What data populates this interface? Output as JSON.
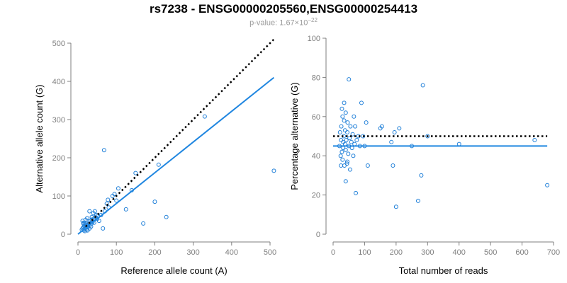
{
  "title": "rs7238 - ENSG00000205560,ENSG00000254413",
  "subtitle": {
    "prefix": "p-value: 1.67×10",
    "exponent": "−22"
  },
  "colors": {
    "points": "#1f7fd8",
    "fit_line": "#1f86e0",
    "reference_line": "#000000",
    "axis": "#7f7f7f"
  },
  "chart_data": [
    {
      "type": "scatter",
      "xlabel": "Reference allele count (A)",
      "ylabel": "Alternative allele count (G)",
      "xlim": [
        0,
        500
      ],
      "ylim": [
        0,
        500
      ],
      "xticks": [
        0,
        100,
        200,
        300,
        400,
        500
      ],
      "yticks": [
        0,
        100,
        200,
        300,
        400,
        500
      ],
      "reference_line": {
        "style": "dotted",
        "x": [
          20,
          510
        ],
        "y": [
          20,
          510
        ]
      },
      "fit_line": {
        "style": "solid",
        "x": [
          0,
          510
        ],
        "y": [
          0,
          410
        ]
      },
      "points": [
        [
          10,
          12
        ],
        [
          12,
          15
        ],
        [
          14,
          18
        ],
        [
          15,
          10
        ],
        [
          16,
          22
        ],
        [
          18,
          14
        ],
        [
          20,
          20
        ],
        [
          22,
          25
        ],
        [
          25,
          18
        ],
        [
          28,
          30
        ],
        [
          30,
          22
        ],
        [
          32,
          35
        ],
        [
          35,
          28
        ],
        [
          38,
          32
        ],
        [
          40,
          40
        ],
        [
          15,
          30
        ],
        [
          18,
          25
        ],
        [
          22,
          12
        ],
        [
          26,
          20
        ],
        [
          30,
          15
        ],
        [
          12,
          35
        ],
        [
          14,
          28
        ],
        [
          20,
          38
        ],
        [
          24,
          42
        ],
        [
          28,
          26
        ],
        [
          34,
          20
        ],
        [
          36,
          38
        ],
        [
          42,
          30
        ],
        [
          45,
          45
        ],
        [
          48,
          50
        ],
        [
          20,
          30
        ],
        [
          25,
          10
        ],
        [
          30,
          60
        ],
        [
          36,
          45
        ],
        [
          40,
          55
        ],
        [
          44,
          60
        ],
        [
          50,
          40
        ],
        [
          52,
          48
        ],
        [
          55,
          35
        ],
        [
          60,
          50
        ],
        [
          65,
          15
        ],
        [
          70,
          60
        ],
        [
          75,
          80
        ],
        [
          78,
          90
        ],
        [
          80,
          70
        ],
        [
          90,
          100
        ],
        [
          95,
          105
        ],
        [
          100,
          88
        ],
        [
          105,
          120
        ],
        [
          68,
          220
        ],
        [
          125,
          65
        ],
        [
          140,
          115
        ],
        [
          150,
          160
        ],
        [
          170,
          28
        ],
        [
          200,
          85
        ],
        [
          210,
          182
        ],
        [
          230,
          45
        ],
        [
          330,
          308
        ],
        [
          510,
          166
        ],
        [
          18,
          8
        ]
      ]
    },
    {
      "type": "scatter",
      "xlabel": "Total number of reads",
      "ylabel": "Percentage alternative (G)",
      "xlim": [
        0,
        700
      ],
      "ylim": [
        0,
        100
      ],
      "xticks": [
        0,
        100,
        200,
        300,
        400,
        500,
        600,
        700
      ],
      "yticks": [
        0,
        20,
        40,
        60,
        80,
        100
      ],
      "reference_line": {
        "style": "dotted",
        "x": [
          0,
          680
        ],
        "y": [
          50,
          50
        ]
      },
      "fit_line": {
        "style": "solid",
        "x": [
          0,
          680
        ],
        "y": [
          45,
          45
        ]
      },
      "points": [
        [
          20,
          45
        ],
        [
          22,
          52
        ],
        [
          24,
          40
        ],
        [
          25,
          48
        ],
        [
          26,
          55
        ],
        [
          28,
          42
        ],
        [
          30,
          60
        ],
        [
          30,
          38
        ],
        [
          32,
          47
        ],
        [
          32,
          44
        ],
        [
          34,
          50
        ],
        [
          35,
          58
        ],
        [
          36,
          35
        ],
        [
          38,
          46
        ],
        [
          38,
          53
        ],
        [
          40,
          43
        ],
        [
          40,
          62
        ],
        [
          42,
          48
        ],
        [
          44,
          36
        ],
        [
          45,
          52
        ],
        [
          46,
          57
        ],
        [
          48,
          41
        ],
        [
          50,
          45
        ],
        [
          50,
          79
        ],
        [
          52,
          49
        ],
        [
          54,
          33
        ],
        [
          55,
          55
        ],
        [
          58,
          47
        ],
        [
          60,
          44
        ],
        [
          62,
          51
        ],
        [
          64,
          40
        ],
        [
          66,
          60
        ],
        [
          68,
          46
        ],
        [
          70,
          55
        ],
        [
          72,
          21
        ],
        [
          75,
          48
        ],
        [
          80,
          50
        ],
        [
          85,
          45
        ],
        [
          90,
          67
        ],
        [
          95,
          50
        ],
        [
          100,
          45
        ],
        [
          105,
          57
        ],
        [
          110,
          35
        ],
        [
          150,
          54
        ],
        [
          155,
          55
        ],
        [
          185,
          47
        ],
        [
          190,
          35
        ],
        [
          195,
          52
        ],
        [
          200,
          14
        ],
        [
          210,
          54
        ],
        [
          250,
          45
        ],
        [
          270,
          17
        ],
        [
          280,
          30
        ],
        [
          285,
          76
        ],
        [
          300,
          50
        ],
        [
          400,
          46
        ],
        [
          640,
          48
        ],
        [
          680,
          25
        ],
        [
          25,
          35
        ],
        [
          35,
          67
        ],
        [
          28,
          64
        ],
        [
          40,
          27
        ],
        [
          45,
          37
        ]
      ]
    }
  ]
}
